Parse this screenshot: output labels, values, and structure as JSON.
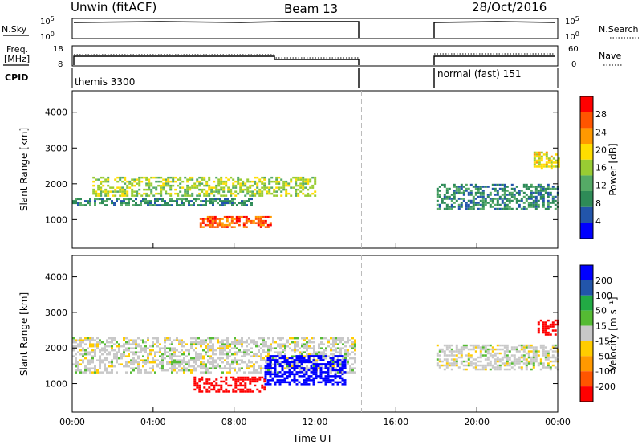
{
  "header": {
    "title": "Unwin (fitACF)",
    "beam": "Beam 13",
    "date": "28/Oct/2016"
  },
  "sky_panel": {
    "left_label": "N.Sky",
    "left_ticks": [
      "10^5",
      "10^0"
    ],
    "right_ticks": [
      "10^5",
      "10^0"
    ],
    "right_label": "N.Search"
  },
  "freq_panel": {
    "left_label_line1": "Freq.",
    "left_label_line2": "[MHz]",
    "left_ticks": [
      "18",
      "8"
    ],
    "right_ticks": [
      "60",
      "0"
    ],
    "right_label": "Nave"
  },
  "cpid_panel": {
    "label": "CPID",
    "segments": [
      {
        "name": "themis 3300",
        "start_hour": 0,
        "end_hour": 14.3
      },
      {
        "name": "normal (fast) 151",
        "start_hour": 18,
        "end_hour": 24
      }
    ]
  },
  "colors": {
    "power": [
      "#0000ff",
      "#2255aa",
      "#2e8b57",
      "#55aa66",
      "#99cc33",
      "#ffdd00",
      "#ff9900",
      "#ff5500",
      "#ff0000"
    ],
    "velocity": [
      "#ff0000",
      "#ff5500",
      "#ff9900",
      "#ffcc00",
      "#c8c8c8",
      "#55bb33",
      "#22aa44",
      "#2255aa",
      "#0000ff"
    ]
  },
  "chart_data": [
    {
      "type": "heatmap",
      "name": "power-panel",
      "xlabel": "",
      "ylabel": "Slant Range [km]",
      "xlim": [
        0,
        24
      ],
      "ylim": [
        200,
        4600
      ],
      "yticks": [
        1000,
        2000,
        3000,
        4000
      ],
      "ytick_labels": [
        "1000",
        "2000",
        "3000",
        "4000"
      ],
      "colorbar": {
        "label": "Power [dB]",
        "ticks": [
          "4",
          "8",
          "12",
          "16",
          "20",
          "24",
          "28"
        ],
        "range": [
          0,
          32
        ]
      },
      "data_gap_hours": [
        14.3,
        18.0
      ],
      "features": [
        {
          "description": "echo band",
          "start_hour": 0.0,
          "end_hour": 9.0,
          "range_start_km": 1400,
          "range_end_km": 1600,
          "power_db": 8
        },
        {
          "description": "echo band",
          "start_hour": 1.0,
          "end_hour": 12.0,
          "range_start_km": 1650,
          "range_end_km": 2200,
          "power_db": 16
        },
        {
          "description": "strong echo",
          "start_hour": 6.3,
          "end_hour": 9.8,
          "range_start_km": 800,
          "range_end_km": 1100,
          "power_db": 28
        },
        {
          "description": "echo band",
          "start_hour": 18.0,
          "end_hour": 24.0,
          "range_start_km": 1300,
          "range_end_km": 2000,
          "power_db": 8
        },
        {
          "description": "patch",
          "start_hour": 22.8,
          "end_hour": 24.0,
          "range_start_km": 2400,
          "range_end_km": 2900,
          "power_db": 20
        }
      ]
    },
    {
      "type": "heatmap",
      "name": "velocity-panel",
      "xlabel": "Time UT",
      "ylabel": "Slant Range [km]",
      "xlim": [
        0,
        24
      ],
      "ylim": [
        200,
        4600
      ],
      "xticks": [
        0,
        4,
        8,
        12,
        16,
        20,
        24
      ],
      "xtick_labels": [
        "00:00",
        "04:00",
        "08:00",
        "12:00",
        "16:00",
        "20:00",
        "00:00"
      ],
      "yticks": [
        1000,
        2000,
        3000,
        4000
      ],
      "ytick_labels": [
        "1000",
        "2000",
        "3000",
        "4000"
      ],
      "colorbar": {
        "label": "Velocity [m s⁻¹]",
        "ticks": [
          "200",
          "100",
          "50",
          "15",
          "-15",
          "-50",
          "-100",
          "-200"
        ]
      },
      "data_gap_hours": [
        14.3,
        18.0
      ],
      "features": [
        {
          "description": "low-velocity band",
          "start_hour": 0.0,
          "end_hour": 14.0,
          "range_start_km": 1300,
          "range_end_km": 2300,
          "velocity": 0
        },
        {
          "description": "strong negative velocity",
          "start_hour": 6.0,
          "end_hour": 9.5,
          "range_start_km": 800,
          "range_end_km": 1200,
          "velocity": -200
        },
        {
          "description": "positive velocity patch",
          "start_hour": 9.5,
          "end_hour": 13.5,
          "range_start_km": 1000,
          "range_end_km": 1800,
          "velocity": 200
        },
        {
          "description": "low-velocity band",
          "start_hour": 18.0,
          "end_hour": 24.0,
          "range_start_km": 1400,
          "range_end_km": 2100,
          "velocity": 0
        },
        {
          "description": "negative velocity patch",
          "start_hour": 23.0,
          "end_hour": 24.0,
          "range_start_km": 2400,
          "range_end_km": 2800,
          "velocity": -200
        }
      ]
    }
  ]
}
